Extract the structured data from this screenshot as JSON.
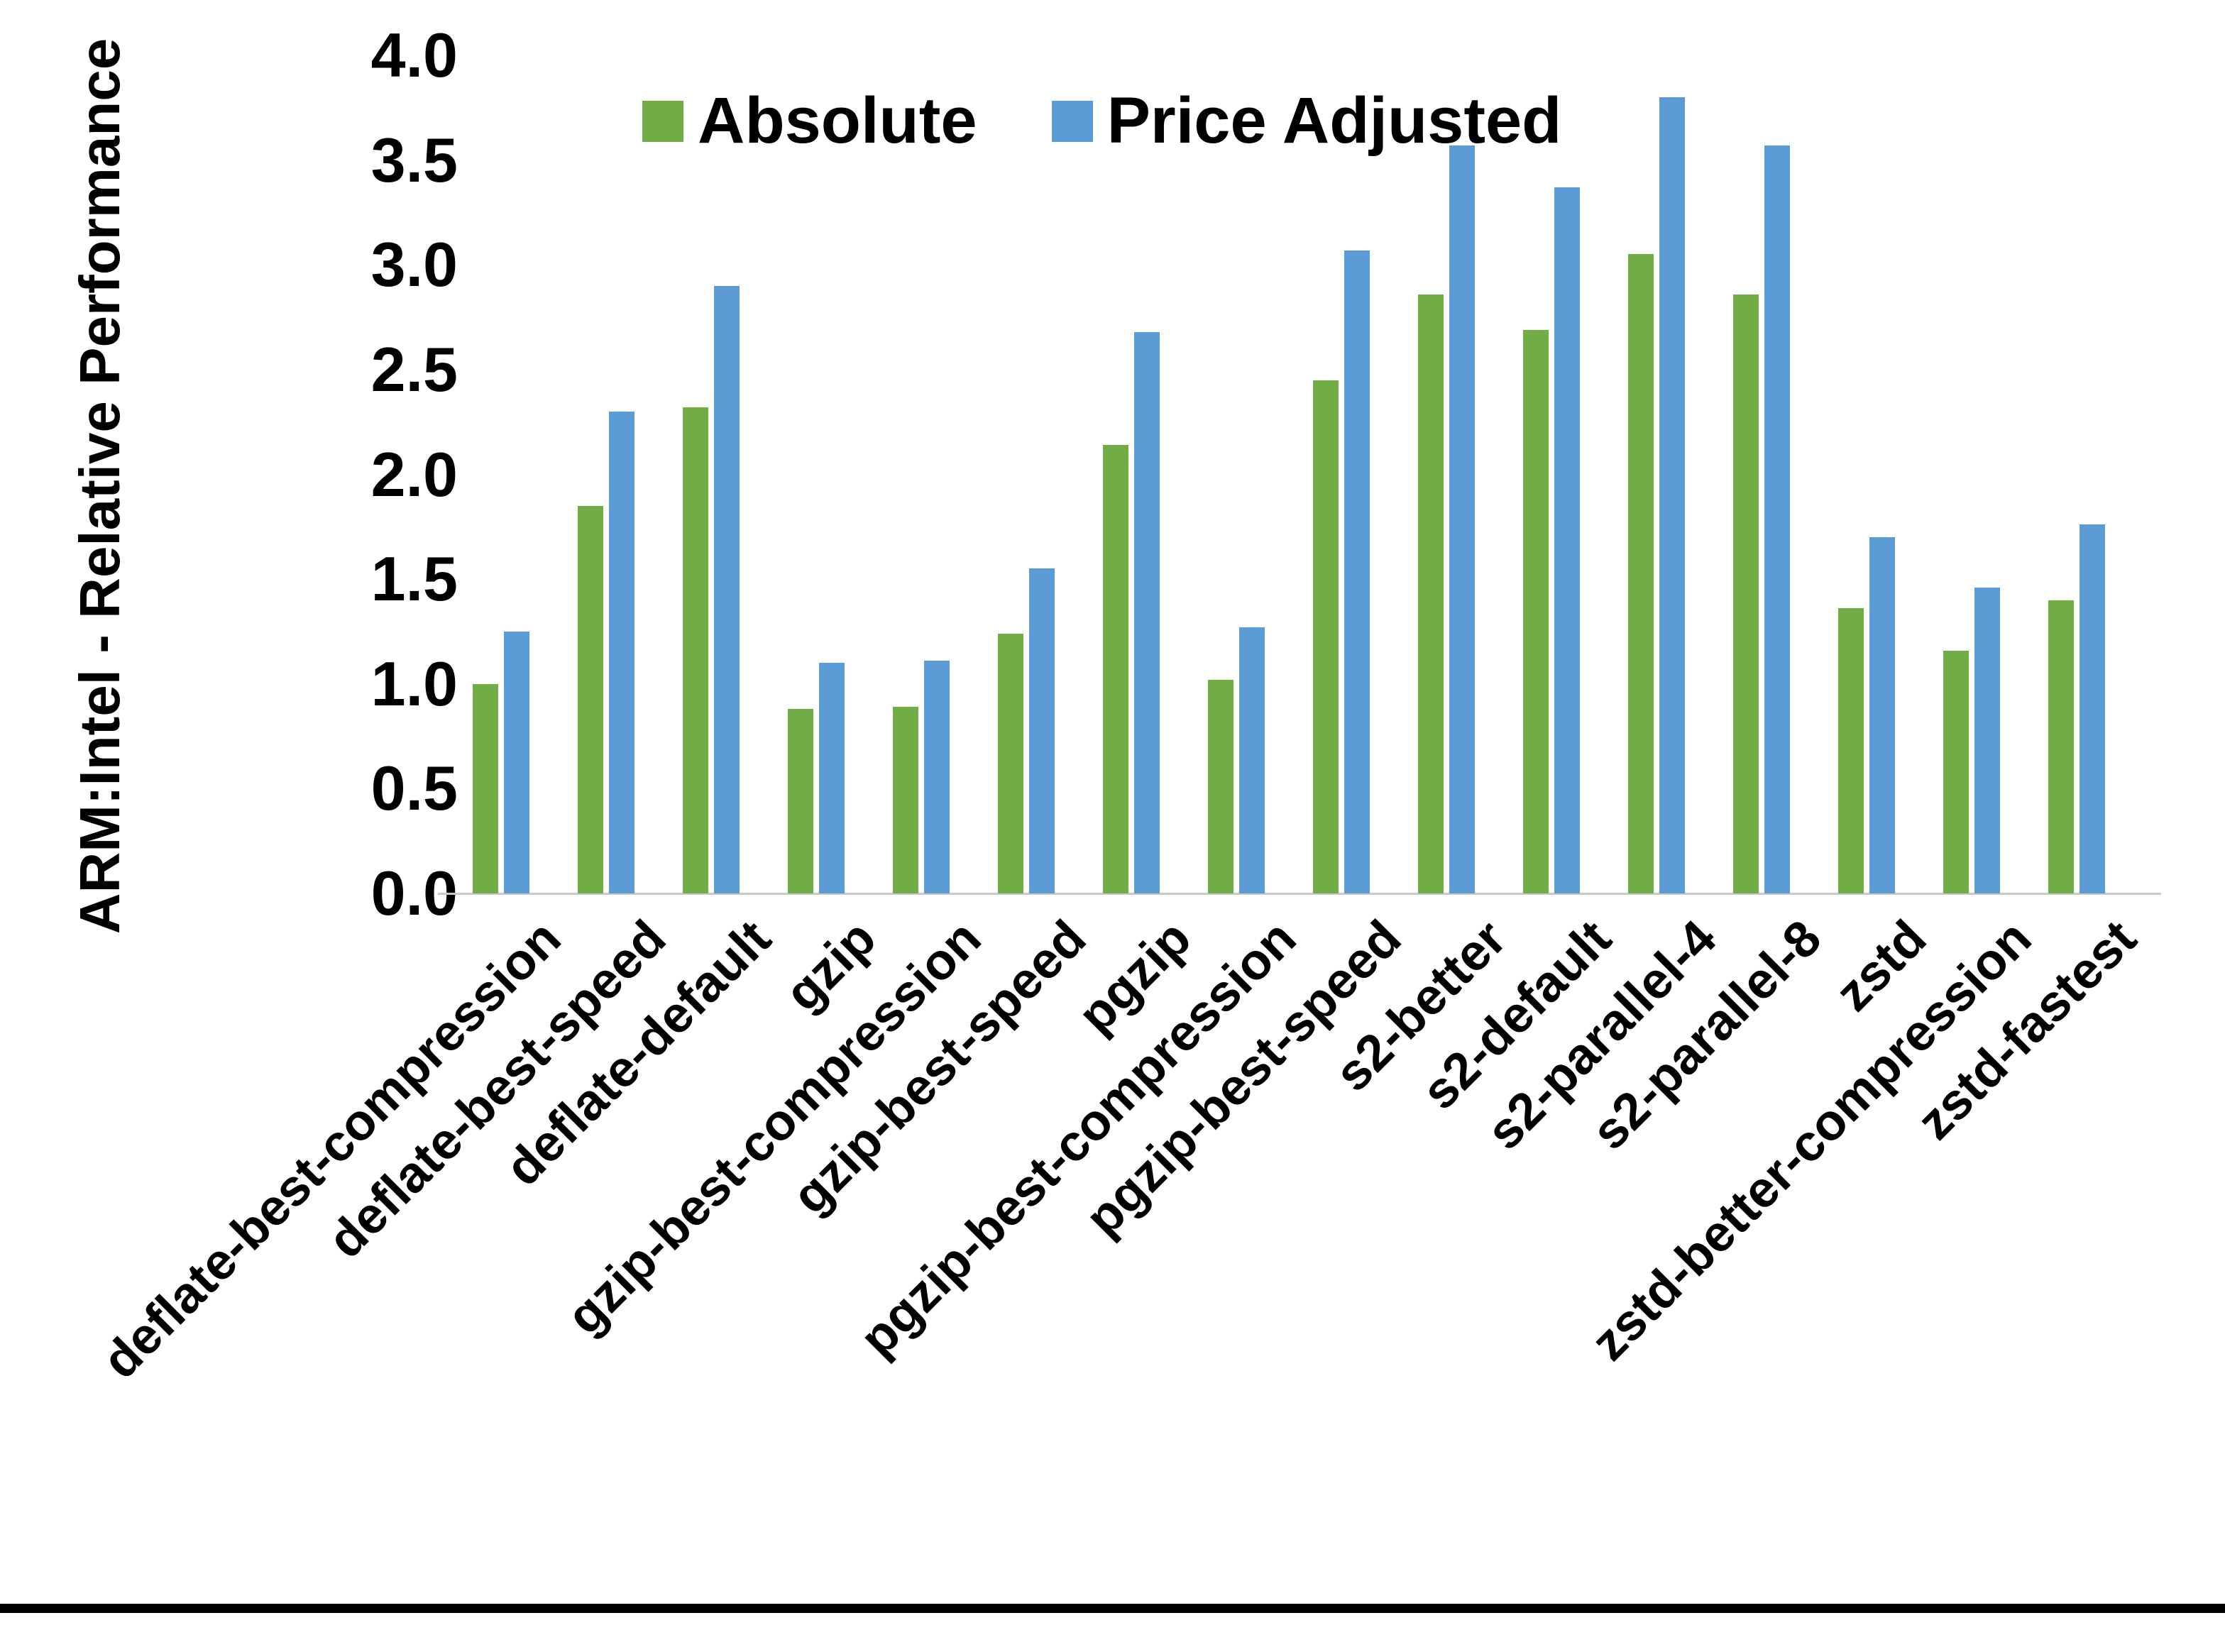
{
  "chart_data": {
    "type": "bar",
    "y_axis_title": "ARM:Intel - Relative Performance",
    "categories": [
      "deflate-best-compression",
      "deflate-best-speed",
      "deflate-default",
      "gzip",
      "gzip-best-compression",
      "gzip-best-speed",
      "pgzip",
      "pgzip-best-compression",
      "pgzip-best-speed",
      "s2-better",
      "s2-default",
      "s2-parallel-4",
      "s2-parallel-8",
      "zstd",
      "zstd-better-compression",
      "zstd-fastest"
    ],
    "series": [
      {
        "name": "Absolute",
        "color": "#70AD47",
        "values": [
          1.0,
          1.85,
          2.32,
          0.88,
          0.89,
          1.24,
          2.14,
          1.02,
          2.45,
          2.86,
          2.69,
          3.05,
          2.86,
          1.36,
          1.16,
          1.4
        ]
      },
      {
        "name": "Price Adjusted",
        "color": "#5B9BD5",
        "values": [
          1.25,
          2.3,
          2.9,
          1.1,
          1.11,
          1.55,
          2.68,
          1.27,
          3.07,
          3.57,
          3.37,
          3.8,
          3.57,
          1.7,
          1.46,
          1.76
        ]
      }
    ],
    "y_axis": {
      "min": 0,
      "max": 4,
      "step": 0.5,
      "tick_labels": [
        "0.0",
        "0.5",
        "1.0",
        "1.5",
        "2.0",
        "2.5",
        "3.0",
        "3.5",
        "4.0"
      ]
    },
    "legend_position": "top-center",
    "grid": false,
    "axis_line_color": "#C9C9C9",
    "text_color": "#000000",
    "background_color": "#FFFFFF"
  }
}
